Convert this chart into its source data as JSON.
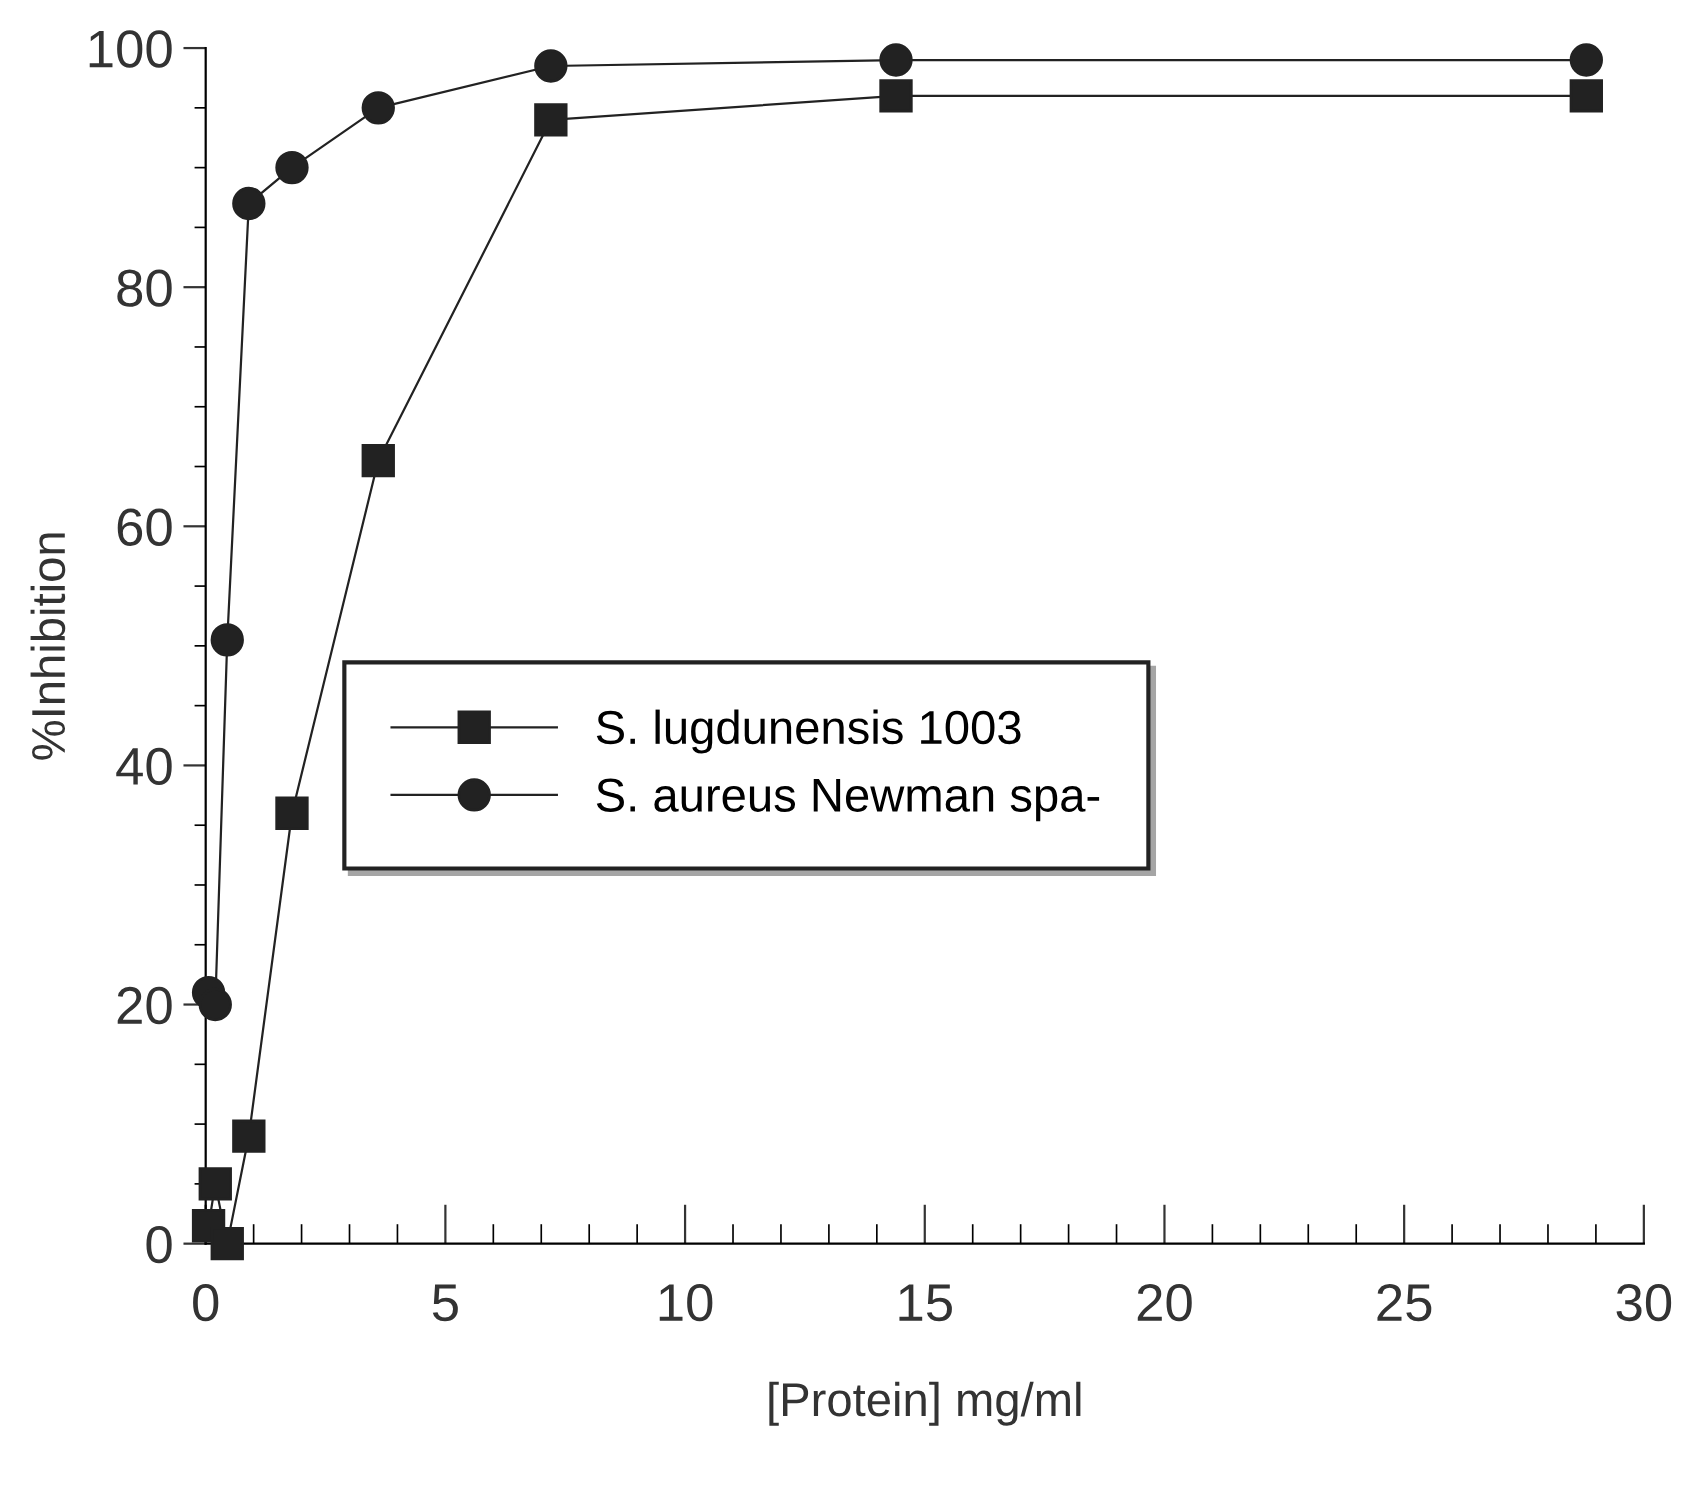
{
  "chart_data": {
    "type": "line",
    "xlabel": "[Protein] mg/ml",
    "ylabel": "%Inhibition",
    "xlim": [
      0,
      30
    ],
    "xticks": [
      0,
      5,
      10,
      15,
      20,
      25,
      30
    ],
    "ylim": [
      0,
      100
    ],
    "yticks": [
      0,
      20,
      40,
      60,
      80,
      100
    ],
    "grid": false,
    "legend": "left",
    "line_style": "solid",
    "series": [
      {
        "name": "S. lugdunensis 1003",
        "color": "#222222",
        "marker": "square",
        "x": [
          0.06,
          0.2,
          0.45,
          0.9,
          1.8,
          3.6,
          7.2,
          14.4,
          28.8
        ],
        "values": [
          1.5,
          5,
          0,
          9,
          36,
          65.5,
          94,
          96,
          96
        ]
      },
      {
        "name": "S. aureus Newman spa-",
        "color": "#222222",
        "marker": "circle",
        "x": [
          0.06,
          0.2,
          0.45,
          0.9,
          1.8,
          3.6,
          7.2,
          14.4,
          28.8
        ],
        "values": [
          21,
          20,
          50.5,
          87,
          90,
          95,
          98.5,
          99,
          99
        ]
      }
    ]
  }
}
